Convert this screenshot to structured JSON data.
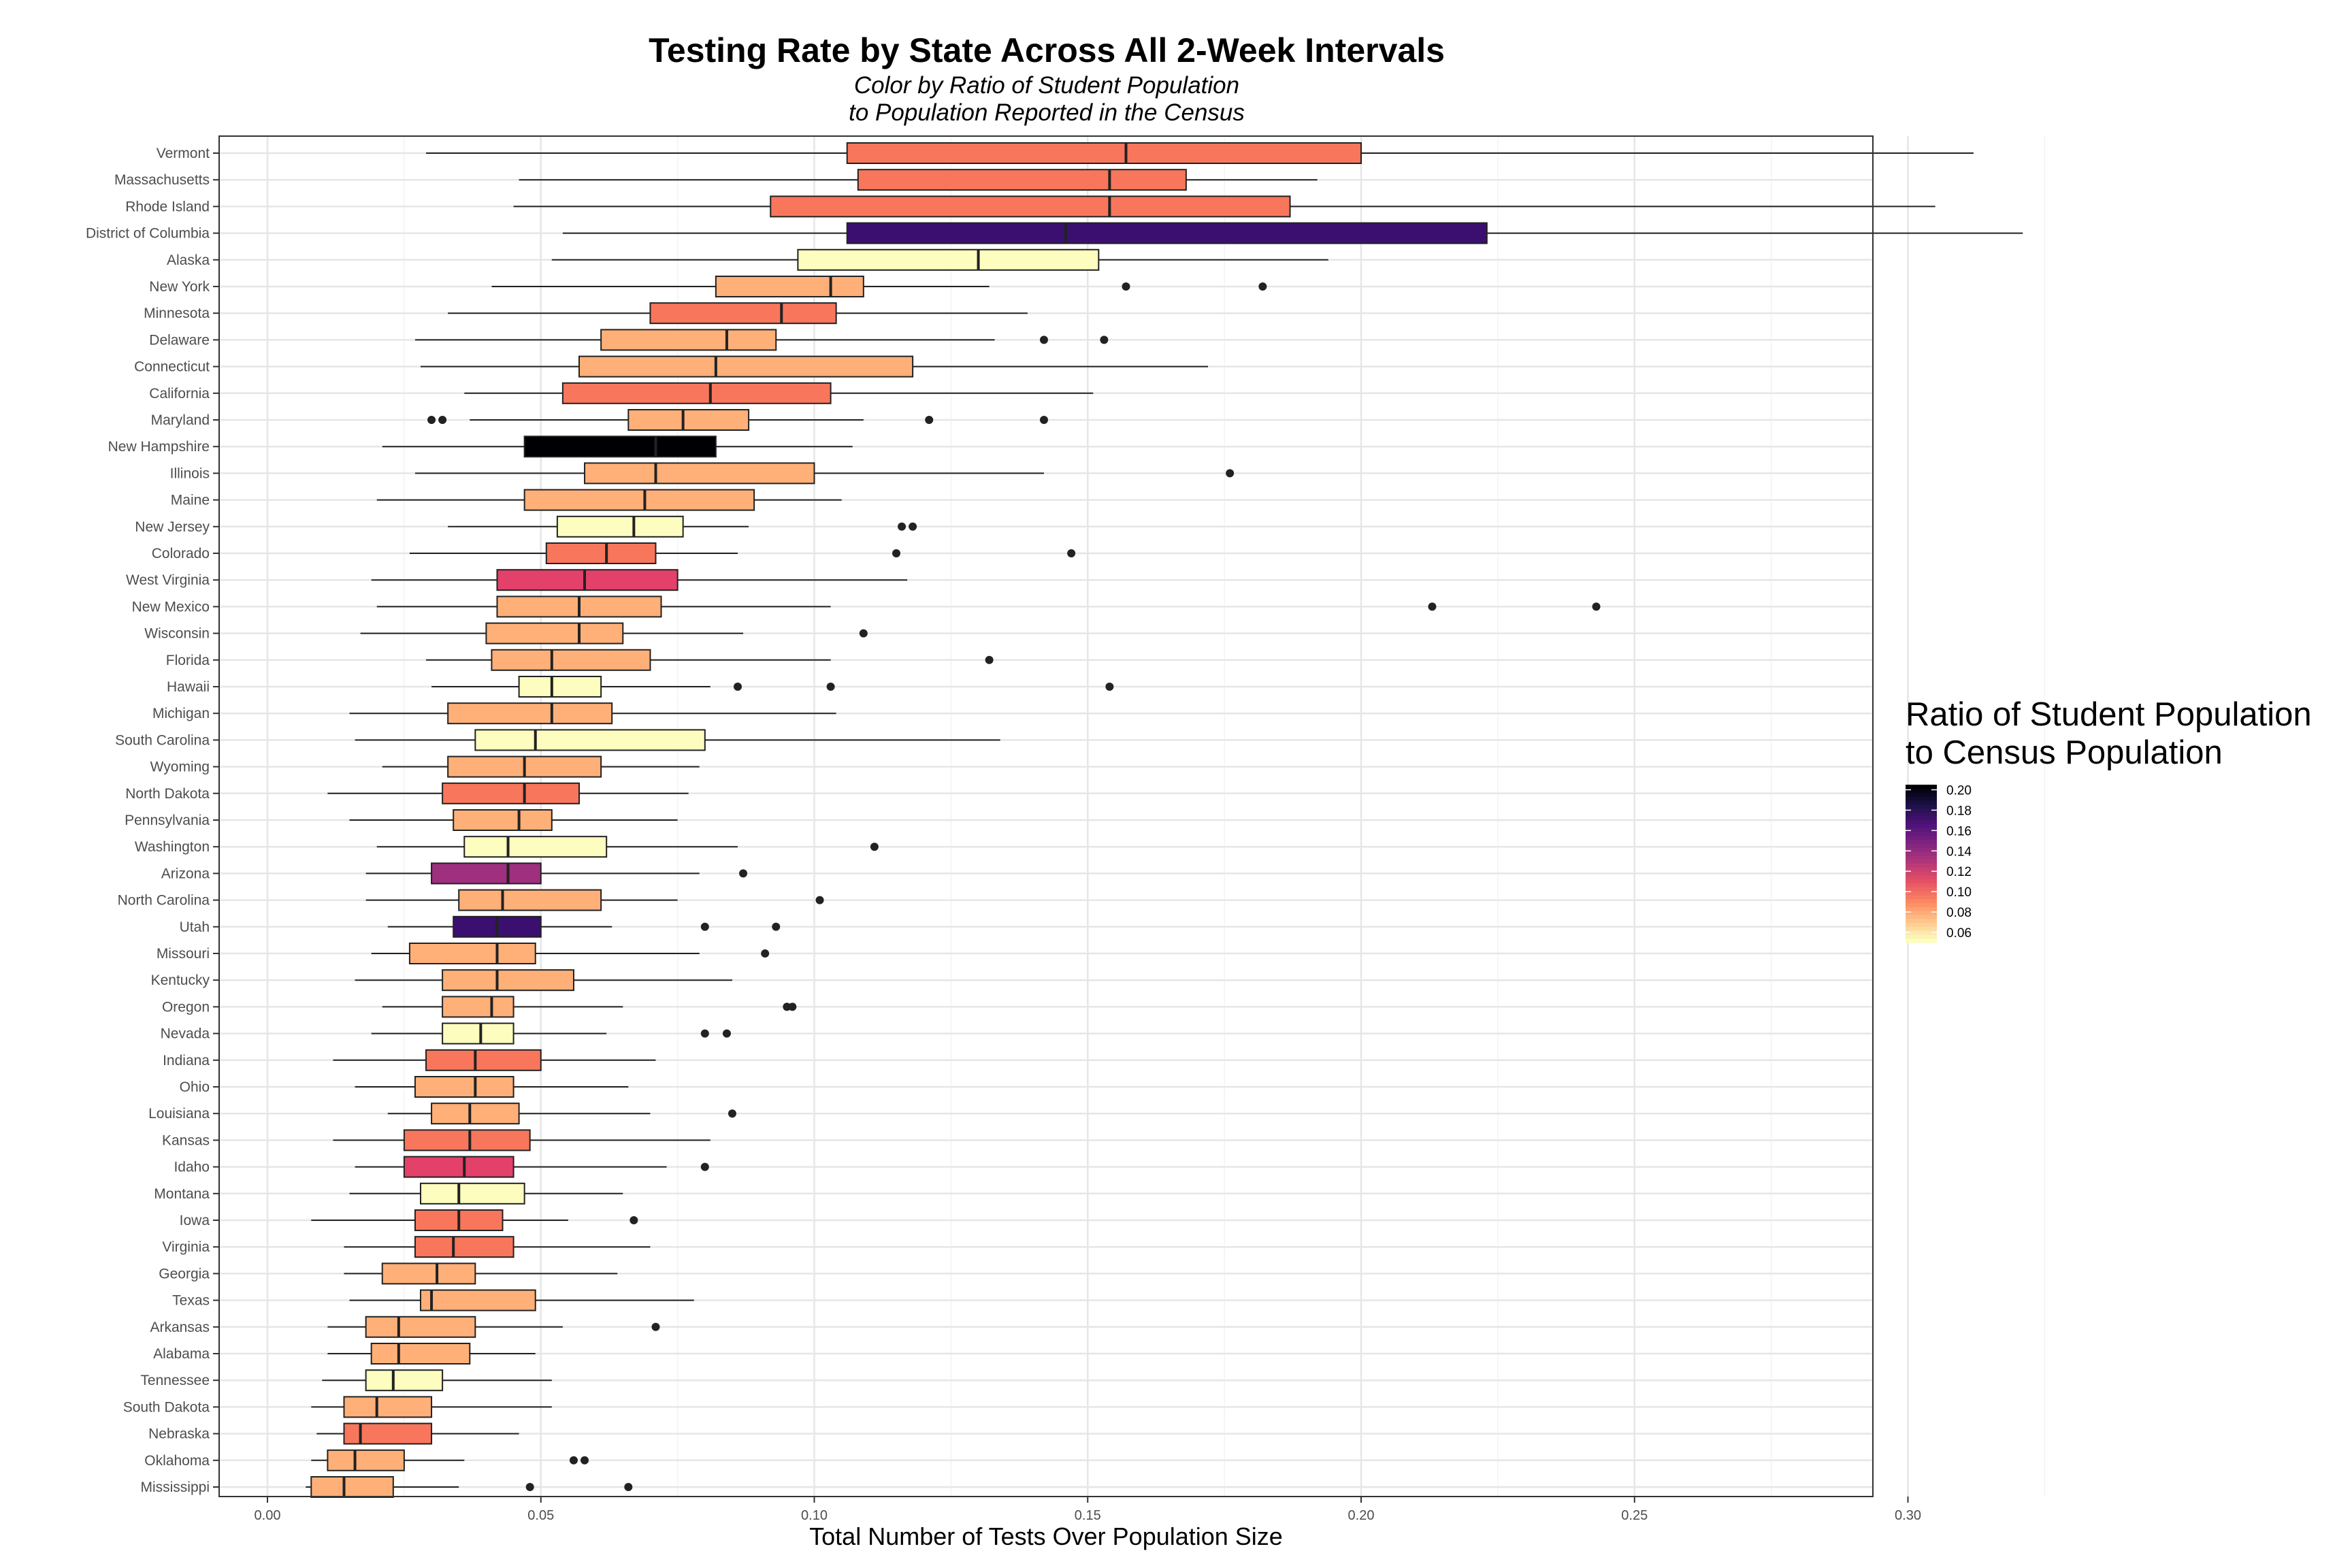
{
  "chart_data": {
    "type": "boxplot",
    "orientation": "horizontal",
    "title": "Testing Rate by State Across All 2-Week Intervals",
    "subtitle_lines": [
      "Color by Ratio of Student Population",
      "to Population Reported in the Census"
    ],
    "xlabel": "Total Number of Tests Over Population Size",
    "xlim": [
      -0.005,
      0.333
    ],
    "xticks": [
      "0.00",
      "0.05",
      "0.10",
      "0.15",
      "0.20",
      "0.25",
      "0.30"
    ],
    "grid": true,
    "legend": {
      "title_lines": [
        "Ratio of Student Population",
        "to Census Population"
      ],
      "placement": "right",
      "ticks": [
        "0.20",
        "0.18",
        "0.16",
        "0.14",
        "0.12",
        "0.10",
        "0.08",
        "0.06"
      ],
      "range": [
        0.05,
        0.205
      ]
    },
    "states": [
      {
        "name": "Vermont",
        "min": 0.029,
        "q1": 0.106,
        "median": 0.157,
        "q3": 0.2,
        "max": 0.312,
        "outliers": [],
        "color": "#f8765c"
      },
      {
        "name": "Massachusetts",
        "min": 0.046,
        "q1": 0.108,
        "median": 0.154,
        "q3": 0.168,
        "max": 0.192,
        "outliers": [],
        "color": "#f8765c"
      },
      {
        "name": "Rhode Island",
        "min": 0.045,
        "q1": 0.092,
        "median": 0.154,
        "q3": 0.187,
        "max": 0.305,
        "outliers": [],
        "color": "#f8765c"
      },
      {
        "name": "District of Columbia",
        "min": 0.054,
        "q1": 0.106,
        "median": 0.146,
        "q3": 0.223,
        "max": 0.321,
        "outliers": [],
        "color": "#3b0f70"
      },
      {
        "name": "Alaska",
        "min": 0.052,
        "q1": 0.097,
        "median": 0.13,
        "q3": 0.152,
        "max": 0.194,
        "outliers": [],
        "color": "#fcfdbf"
      },
      {
        "name": "New York",
        "min": 0.041,
        "q1": 0.082,
        "median": 0.103,
        "q3": 0.109,
        "max": 0.132,
        "outliers": [
          0.157,
          0.182
        ],
        "color": "#feb078"
      },
      {
        "name": "Minnesota",
        "min": 0.033,
        "q1": 0.07,
        "median": 0.094,
        "q3": 0.104,
        "max": 0.139,
        "outliers": [],
        "color": "#f8765c"
      },
      {
        "name": "Delaware",
        "min": 0.027,
        "q1": 0.061,
        "median": 0.084,
        "q3": 0.093,
        "max": 0.133,
        "outliers": [
          0.142,
          0.153
        ],
        "color": "#feb078"
      },
      {
        "name": "Connecticut",
        "min": 0.028,
        "q1": 0.057,
        "median": 0.082,
        "q3": 0.118,
        "max": 0.172,
        "outliers": [],
        "color": "#feb078"
      },
      {
        "name": "California",
        "min": 0.036,
        "q1": 0.054,
        "median": 0.081,
        "q3": 0.103,
        "max": 0.151,
        "outliers": [],
        "color": "#f8765c"
      },
      {
        "name": "Maryland",
        "min": 0.037,
        "q1": 0.066,
        "median": 0.076,
        "q3": 0.088,
        "max": 0.109,
        "outliers": [
          0.03,
          0.032,
          0.121,
          0.142
        ],
        "color": "#feb078"
      },
      {
        "name": "New Hampshire",
        "min": 0.021,
        "q1": 0.047,
        "median": 0.071,
        "q3": 0.082,
        "max": 0.107,
        "outliers": [],
        "color": "#000004"
      },
      {
        "name": "Illinois",
        "min": 0.027,
        "q1": 0.058,
        "median": 0.071,
        "q3": 0.1,
        "max": 0.142,
        "outliers": [
          0.176
        ],
        "color": "#feb078"
      },
      {
        "name": "Maine",
        "min": 0.02,
        "q1": 0.047,
        "median": 0.069,
        "q3": 0.089,
        "max": 0.105,
        "outliers": [],
        "color": "#feb078"
      },
      {
        "name": "New Jersey",
        "min": 0.033,
        "q1": 0.053,
        "median": 0.067,
        "q3": 0.076,
        "max": 0.088,
        "outliers": [
          0.116,
          0.118
        ],
        "color": "#fcfdbf"
      },
      {
        "name": "Colorado",
        "min": 0.026,
        "q1": 0.051,
        "median": 0.062,
        "q3": 0.071,
        "max": 0.086,
        "outliers": [
          0.115,
          0.147
        ],
        "color": "#f8765c"
      },
      {
        "name": "West Virginia",
        "min": 0.019,
        "q1": 0.042,
        "median": 0.058,
        "q3": 0.075,
        "max": 0.117,
        "outliers": [],
        "color": "#e3416a"
      },
      {
        "name": "New Mexico",
        "min": 0.02,
        "q1": 0.042,
        "median": 0.057,
        "q3": 0.072,
        "max": 0.103,
        "outliers": [
          0.213,
          0.243
        ],
        "color": "#feb078"
      },
      {
        "name": "Wisconsin",
        "min": 0.017,
        "q1": 0.04,
        "median": 0.057,
        "q3": 0.065,
        "max": 0.087,
        "outliers": [
          0.109
        ],
        "color": "#feb078"
      },
      {
        "name": "Florida",
        "min": 0.029,
        "q1": 0.041,
        "median": 0.052,
        "q3": 0.07,
        "max": 0.103,
        "outliers": [
          0.132
        ],
        "color": "#feb078"
      },
      {
        "name": "Hawaii",
        "min": 0.03,
        "q1": 0.046,
        "median": 0.052,
        "q3": 0.061,
        "max": 0.081,
        "outliers": [
          0.086,
          0.103,
          0.154
        ],
        "color": "#fcfdbf"
      },
      {
        "name": "Michigan",
        "min": 0.015,
        "q1": 0.033,
        "median": 0.052,
        "q3": 0.063,
        "max": 0.104,
        "outliers": [],
        "color": "#feb078"
      },
      {
        "name": "South Carolina",
        "min": 0.016,
        "q1": 0.038,
        "median": 0.049,
        "q3": 0.08,
        "max": 0.134,
        "outliers": [],
        "color": "#fcfdbf"
      },
      {
        "name": "Wyoming",
        "min": 0.021,
        "q1": 0.033,
        "median": 0.047,
        "q3": 0.061,
        "max": 0.079,
        "outliers": [],
        "color": "#feb078"
      },
      {
        "name": "North Dakota",
        "min": 0.011,
        "q1": 0.032,
        "median": 0.047,
        "q3": 0.057,
        "max": 0.077,
        "outliers": [],
        "color": "#f8765c"
      },
      {
        "name": "Pennsylvania",
        "min": 0.015,
        "q1": 0.034,
        "median": 0.046,
        "q3": 0.052,
        "max": 0.075,
        "outliers": [],
        "color": "#feb078"
      },
      {
        "name": "Washington",
        "min": 0.02,
        "q1": 0.036,
        "median": 0.044,
        "q3": 0.062,
        "max": 0.086,
        "outliers": [
          0.111
        ],
        "color": "#fcfdbf"
      },
      {
        "name": "Arizona",
        "min": 0.018,
        "q1": 0.03,
        "median": 0.044,
        "q3": 0.05,
        "max": 0.079,
        "outliers": [
          0.087
        ],
        "color": "#9f2f7f"
      },
      {
        "name": "North Carolina",
        "min": 0.018,
        "q1": 0.035,
        "median": 0.043,
        "q3": 0.061,
        "max": 0.075,
        "outliers": [
          0.101
        ],
        "color": "#feb078"
      },
      {
        "name": "Utah",
        "min": 0.022,
        "q1": 0.034,
        "median": 0.042,
        "q3": 0.05,
        "max": 0.063,
        "outliers": [
          0.08,
          0.093
        ],
        "color": "#3b0f70"
      },
      {
        "name": "Missouri",
        "min": 0.019,
        "q1": 0.026,
        "median": 0.042,
        "q3": 0.049,
        "max": 0.079,
        "outliers": [
          0.091
        ],
        "color": "#feb078"
      },
      {
        "name": "Kentucky",
        "min": 0.016,
        "q1": 0.032,
        "median": 0.042,
        "q3": 0.056,
        "max": 0.085,
        "outliers": [],
        "color": "#feb078"
      },
      {
        "name": "Oregon",
        "min": 0.021,
        "q1": 0.032,
        "median": 0.041,
        "q3": 0.045,
        "max": 0.065,
        "outliers": [
          0.095,
          0.096
        ],
        "color": "#feb078"
      },
      {
        "name": "Nevada",
        "min": 0.019,
        "q1": 0.032,
        "median": 0.039,
        "q3": 0.045,
        "max": 0.062,
        "outliers": [
          0.08,
          0.084
        ],
        "color": "#fcfdbf"
      },
      {
        "name": "Indiana",
        "min": 0.012,
        "q1": 0.029,
        "median": 0.038,
        "q3": 0.05,
        "max": 0.071,
        "outliers": [],
        "color": "#f8765c"
      },
      {
        "name": "Ohio",
        "min": 0.016,
        "q1": 0.027,
        "median": 0.038,
        "q3": 0.045,
        "max": 0.066,
        "outliers": [],
        "color": "#feb078"
      },
      {
        "name": "Louisiana",
        "min": 0.022,
        "q1": 0.03,
        "median": 0.037,
        "q3": 0.046,
        "max": 0.07,
        "outliers": [
          0.085
        ],
        "color": "#feb078"
      },
      {
        "name": "Kansas",
        "min": 0.012,
        "q1": 0.025,
        "median": 0.037,
        "q3": 0.048,
        "max": 0.081,
        "outliers": [],
        "color": "#f8765c"
      },
      {
        "name": "Idaho",
        "min": 0.016,
        "q1": 0.025,
        "median": 0.036,
        "q3": 0.045,
        "max": 0.073,
        "outliers": [
          0.08
        ],
        "color": "#e3416a"
      },
      {
        "name": "Montana",
        "min": 0.015,
        "q1": 0.028,
        "median": 0.035,
        "q3": 0.047,
        "max": 0.065,
        "outliers": [],
        "color": "#fcfdbf"
      },
      {
        "name": "Iowa",
        "min": 0.008,
        "q1": 0.027,
        "median": 0.035,
        "q3": 0.043,
        "max": 0.055,
        "outliers": [
          0.067
        ],
        "color": "#f8765c"
      },
      {
        "name": "Virginia",
        "min": 0.014,
        "q1": 0.027,
        "median": 0.034,
        "q3": 0.045,
        "max": 0.07,
        "outliers": [],
        "color": "#f8765c"
      },
      {
        "name": "Georgia",
        "min": 0.014,
        "q1": 0.021,
        "median": 0.031,
        "q3": 0.038,
        "max": 0.064,
        "outliers": [],
        "color": "#feb078"
      },
      {
        "name": "Texas",
        "min": 0.015,
        "q1": 0.028,
        "median": 0.03,
        "q3": 0.049,
        "max": 0.078,
        "outliers": [],
        "color": "#feb078"
      },
      {
        "name": "Arkansas",
        "min": 0.011,
        "q1": 0.018,
        "median": 0.024,
        "q3": 0.038,
        "max": 0.054,
        "outliers": [
          0.071
        ],
        "color": "#feb078"
      },
      {
        "name": "Alabama",
        "min": 0.011,
        "q1": 0.019,
        "median": 0.024,
        "q3": 0.037,
        "max": 0.049,
        "outliers": [],
        "color": "#feb078"
      },
      {
        "name": "Tennessee",
        "min": 0.01,
        "q1": 0.018,
        "median": 0.023,
        "q3": 0.032,
        "max": 0.052,
        "outliers": [],
        "color": "#fcfdbf"
      },
      {
        "name": "South Dakota",
        "min": 0.008,
        "q1": 0.014,
        "median": 0.02,
        "q3": 0.03,
        "max": 0.052,
        "outliers": [],
        "color": "#feb078"
      },
      {
        "name": "Nebraska",
        "min": 0.009,
        "q1": 0.014,
        "median": 0.017,
        "q3": 0.03,
        "max": 0.046,
        "outliers": [],
        "color": "#f8765c"
      },
      {
        "name": "Oklahoma",
        "min": 0.008,
        "q1": 0.011,
        "median": 0.016,
        "q3": 0.025,
        "max": 0.036,
        "outliers": [
          0.056,
          0.058
        ],
        "color": "#feb078"
      },
      {
        "name": "Mississippi",
        "min": 0.007,
        "q1": 0.008,
        "median": 0.014,
        "q3": 0.023,
        "max": 0.035,
        "outliers": [
          0.048,
          0.066
        ],
        "color": "#feb078"
      }
    ]
  }
}
